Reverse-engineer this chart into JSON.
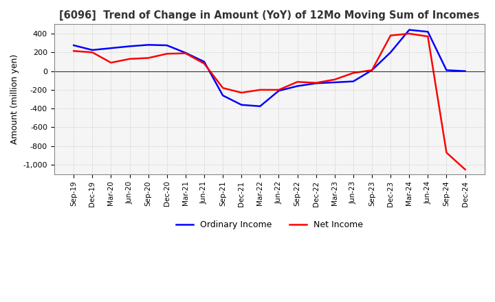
{
  "title": "[6096]  Trend of Change in Amount (YoY) of 12Mo Moving Sum of Incomes",
  "ylabel": "Amount (million yen)",
  "ylim": [
    -1100,
    500
  ],
  "yticks": [
    400,
    200,
    0,
    -200,
    -400,
    -600,
    -800,
    -1000
  ],
  "background_color": "#ffffff",
  "plot_bg_color": "#f5f5f5",
  "grid_color": "#bbbbbb",
  "line1_color": "#0000ff",
  "line2_color": "#ff0000",
  "line1_label": "Ordinary Income",
  "line2_label": "Net Income",
  "x_labels": [
    "Sep-19",
    "Dec-19",
    "Mar-20",
    "Jun-20",
    "Sep-20",
    "Dec-20",
    "Mar-21",
    "Jun-21",
    "Sep-21",
    "Dec-21",
    "Mar-22",
    "Jun-22",
    "Sep-22",
    "Dec-22",
    "Mar-23",
    "Jun-23",
    "Sep-23",
    "Dec-23",
    "Mar-24",
    "Jun-24",
    "Sep-24",
    "Dec-24"
  ],
  "ordinary_income": [
    275,
    225,
    245,
    265,
    280,
    275,
    195,
    100,
    -260,
    -360,
    -375,
    -210,
    -160,
    -130,
    -120,
    -110,
    10,
    200,
    440,
    420,
    10,
    0
  ],
  "net_income": [
    215,
    200,
    90,
    130,
    140,
    185,
    190,
    80,
    -180,
    -230,
    -200,
    -200,
    -115,
    -125,
    -90,
    -20,
    10,
    380,
    400,
    370,
    -870,
    -1050
  ]
}
